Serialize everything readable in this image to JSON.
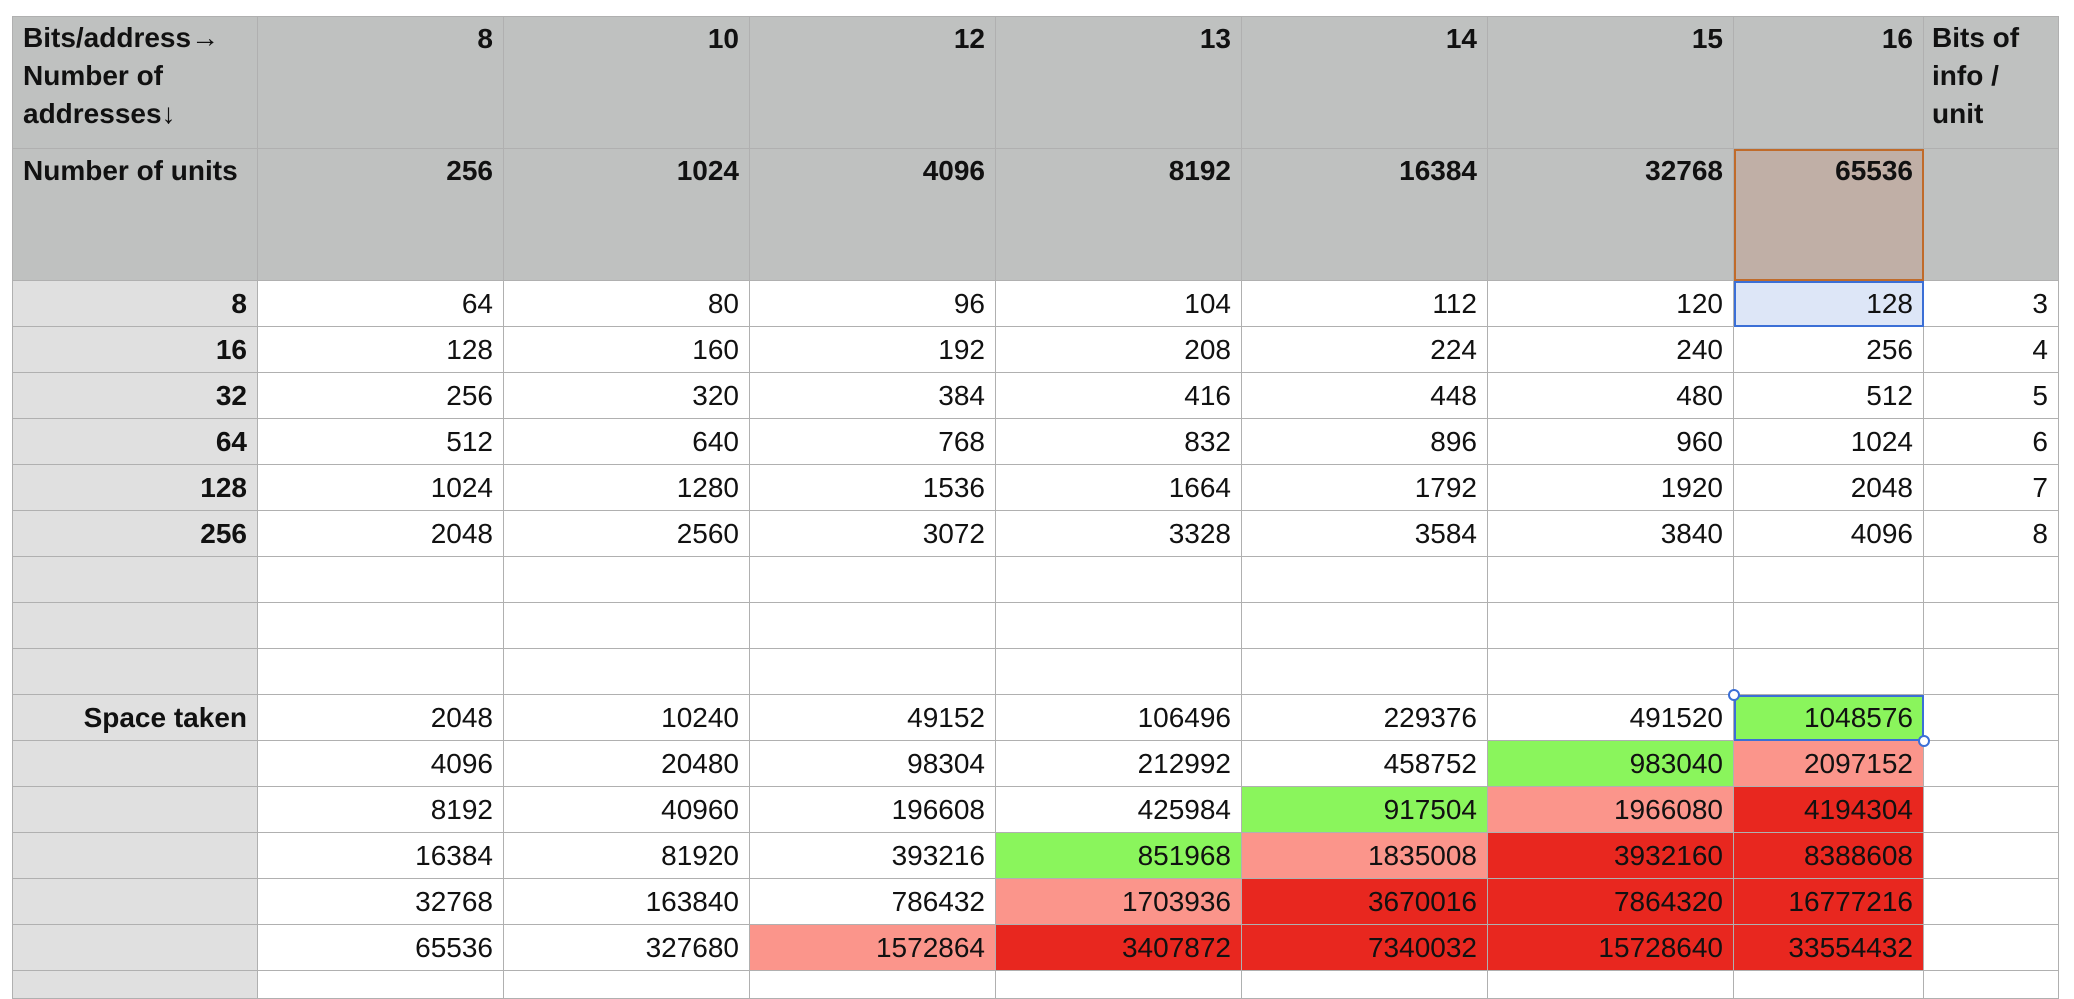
{
  "header": {
    "corner_label": "Bits/address→ Number of addresses↓",
    "bits_per_address": [
      "8",
      "10",
      "12",
      "13",
      "14",
      "15",
      "16"
    ],
    "bits_info_label": "Bits of info / unit",
    "units_label": "Number of units",
    "number_of_units": [
      "256",
      "1024",
      "4096",
      "8192",
      "16384",
      "32768",
      "65536"
    ]
  },
  "rows": [
    {
      "addresses": "8",
      "values": [
        "64",
        "80",
        "96",
        "104",
        "112",
        "120",
        "128"
      ],
      "bits_info": "3"
    },
    {
      "addresses": "16",
      "values": [
        "128",
        "160",
        "192",
        "208",
        "224",
        "240",
        "256"
      ],
      "bits_info": "4"
    },
    {
      "addresses": "32",
      "values": [
        "256",
        "320",
        "384",
        "416",
        "448",
        "480",
        "512"
      ],
      "bits_info": "5"
    },
    {
      "addresses": "64",
      "values": [
        "512",
        "640",
        "768",
        "832",
        "896",
        "960",
        "1024"
      ],
      "bits_info": "6"
    },
    {
      "addresses": "128",
      "values": [
        "1024",
        "1280",
        "1536",
        "1664",
        "1792",
        "1920",
        "2048"
      ],
      "bits_info": "7"
    },
    {
      "addresses": "256",
      "values": [
        "2048",
        "2560",
        "3072",
        "3328",
        "3584",
        "3840",
        "4096"
      ],
      "bits_info": "8"
    }
  ],
  "space": {
    "label": "Space taken",
    "rows": [
      {
        "values": [
          "2048",
          "10240",
          "49152",
          "106496",
          "229376",
          "491520",
          "1048576"
        ],
        "fills": [
          "",
          "",
          "",
          "",
          "",
          "",
          "green"
        ]
      },
      {
        "values": [
          "4096",
          "20480",
          "98304",
          "212992",
          "458752",
          "983040",
          "2097152"
        ],
        "fills": [
          "",
          "",
          "",
          "",
          "",
          "green",
          "pink"
        ]
      },
      {
        "values": [
          "8192",
          "40960",
          "196608",
          "425984",
          "917504",
          "1966080",
          "4194304"
        ],
        "fills": [
          "",
          "",
          "",
          "",
          "green",
          "pink",
          "red"
        ]
      },
      {
        "values": [
          "16384",
          "81920",
          "393216",
          "851968",
          "1835008",
          "3932160",
          "8388608"
        ],
        "fills": [
          "",
          "",
          "",
          "green",
          "pink",
          "red",
          "red"
        ]
      },
      {
        "values": [
          "32768",
          "163840",
          "786432",
          "1703936",
          "3670016",
          "7864320",
          "16777216"
        ],
        "fills": [
          "",
          "",
          "",
          "pink",
          "red",
          "red",
          "red"
        ]
      },
      {
        "values": [
          "65536",
          "327680",
          "1572864",
          "3407872",
          "7340032",
          "15728640",
          "33554432"
        ],
        "fills": [
          "",
          "",
          "pink",
          "red",
          "red",
          "red",
          "red"
        ]
      }
    ]
  },
  "colors": {
    "header_bg": "#bfc1c0",
    "row_header_bg": "#e0e0e0",
    "green": "#8af55c",
    "pink": "#fb958b",
    "red": "#e8271f",
    "selection": "#3b6fd6",
    "header_selection": "#c06b2a"
  }
}
